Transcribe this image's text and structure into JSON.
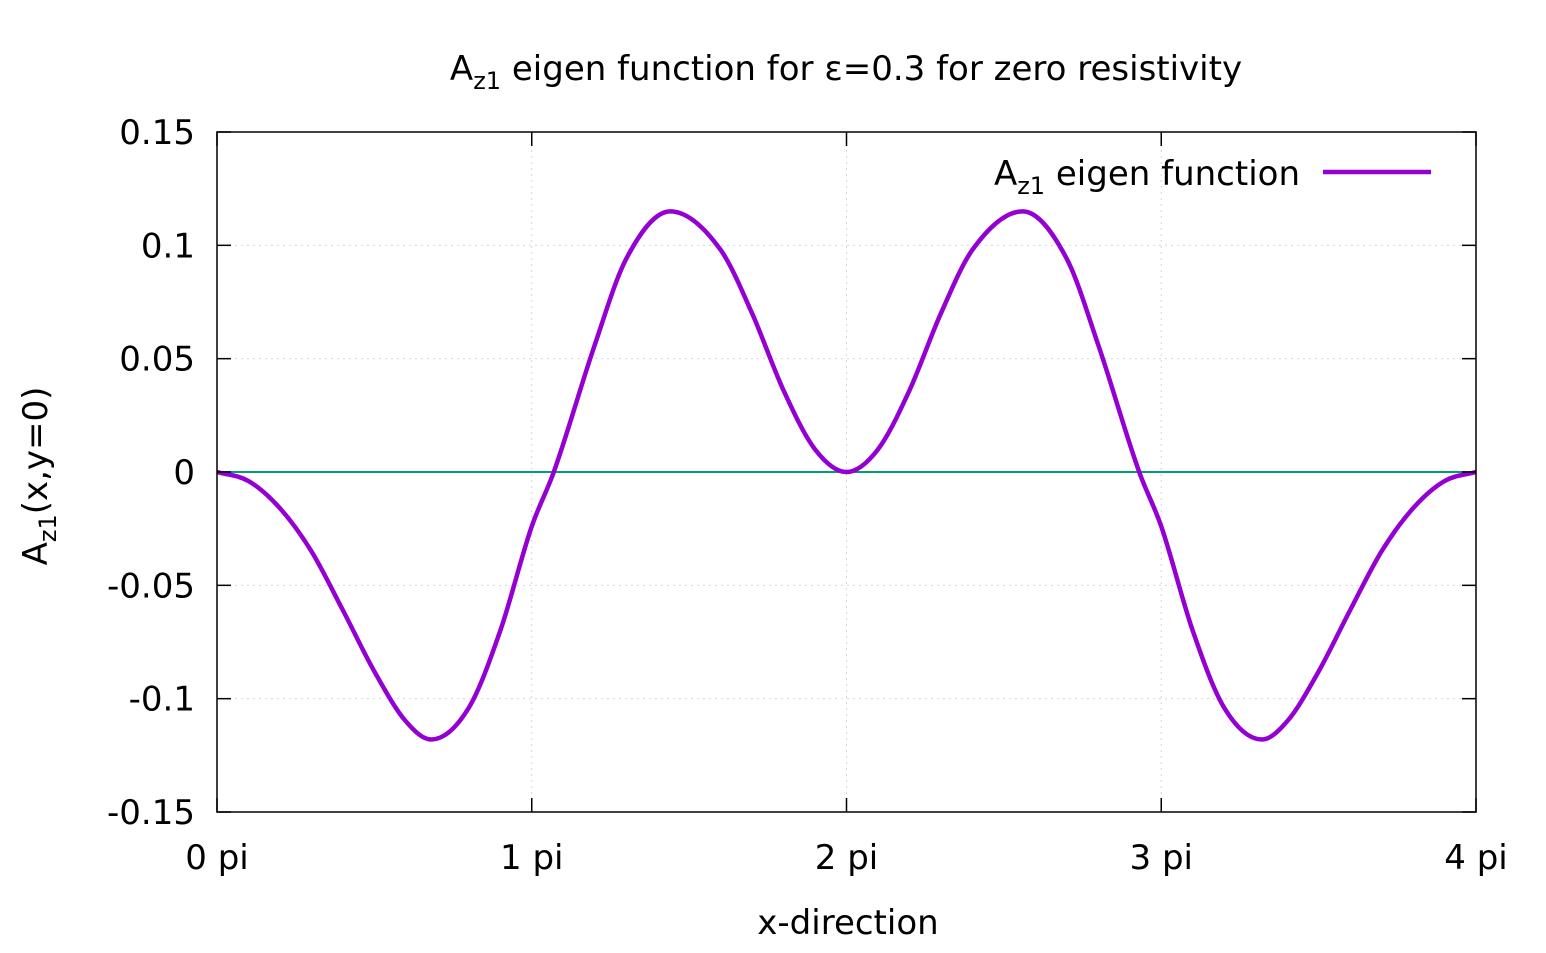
{
  "chart_data": {
    "type": "line",
    "title": {
      "main": "A",
      "sub": "z1",
      "rest": " eigen function for ε=0.3 for zero resistivity"
    },
    "xlabel": "x-direction",
    "ylabel": {
      "main": "A",
      "sub": "z1",
      "rest": "(x,y=0)"
    },
    "xlim": [
      0,
      4
    ],
    "ylim": [
      -0.15,
      0.15
    ],
    "x_unit": "pi",
    "xticks": [
      {
        "value": 0,
        "label": "0 pi"
      },
      {
        "value": 1,
        "label": "1 pi"
      },
      {
        "value": 2,
        "label": "2 pi"
      },
      {
        "value": 3,
        "label": "3 pi"
      },
      {
        "value": 4,
        "label": "4 pi"
      }
    ],
    "yticks": [
      {
        "value": -0.15,
        "label": "-0.15"
      },
      {
        "value": -0.1,
        "label": "-0.1"
      },
      {
        "value": -0.05,
        "label": "-0.05"
      },
      {
        "value": 0,
        "label": "0"
      },
      {
        "value": 0.05,
        "label": "0.05"
      },
      {
        "value": 0.1,
        "label": "0.1"
      },
      {
        "value": 0.15,
        "label": "0.15"
      }
    ],
    "grid": true,
    "legend_position": "top-right",
    "series": [
      {
        "name": {
          "main": "A",
          "sub": "z1",
          "rest": " eigen function"
        },
        "color": "#9400d3",
        "x": [
          0,
          0.1,
          0.2,
          0.3,
          0.4,
          0.5,
          0.6,
          0.68,
          0.8,
          0.9,
          1.0,
          1.07,
          1.2,
          1.3,
          1.44,
          1.6,
          1.7,
          1.8,
          1.9,
          2.0,
          2.1,
          2.2,
          2.3,
          2.4,
          2.56,
          2.7,
          2.8,
          2.93,
          3.0,
          3.1,
          3.2,
          3.32,
          3.4,
          3.5,
          3.6,
          3.7,
          3.8,
          3.9,
          4.0
        ],
        "values": [
          0,
          -0.004,
          -0.016,
          -0.035,
          -0.061,
          -0.088,
          -0.11,
          -0.118,
          -0.104,
          -0.07,
          -0.024,
          0,
          0.056,
          0.094,
          0.115,
          0.098,
          0.07,
          0.036,
          0.01,
          0,
          0.01,
          0.036,
          0.07,
          0.098,
          0.115,
          0.094,
          0.056,
          0,
          -0.024,
          -0.07,
          -0.104,
          -0.118,
          -0.11,
          -0.088,
          -0.061,
          -0.035,
          -0.016,
          -0.004,
          0
        ]
      },
      {
        "color": "#009e73",
        "x": [
          0,
          4
        ],
        "values": [
          0,
          0
        ]
      }
    ]
  }
}
